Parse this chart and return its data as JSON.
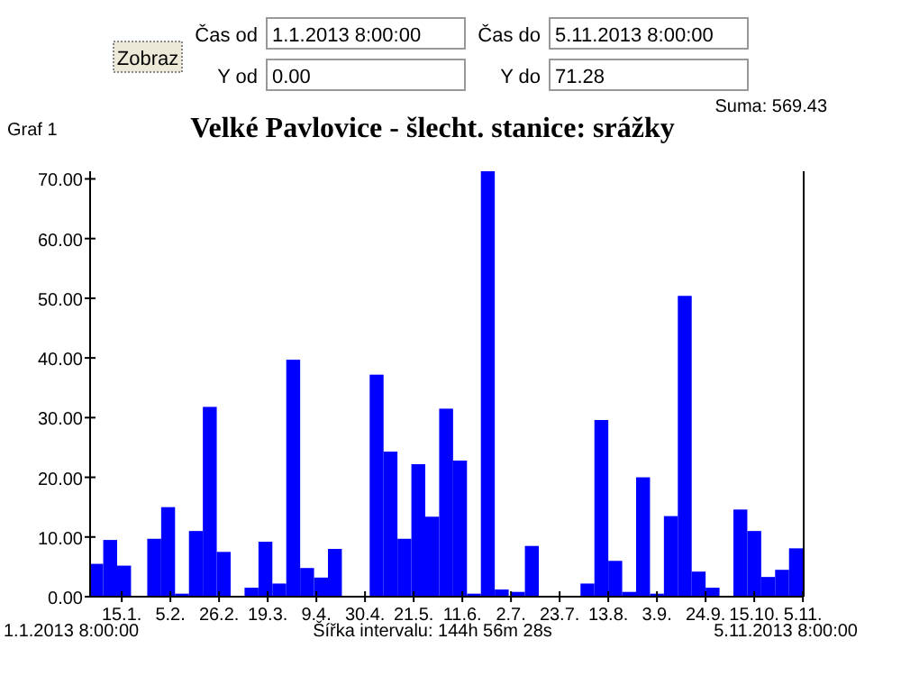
{
  "chart_data": {
    "type": "bar",
    "title": "Velké Pavlovice - šlecht. stanice: srážky",
    "annotations": [
      "Zobraz",
      "Čas od",
      "1.1.2013 8:00:00",
      "Čas do",
      "5.11.2013 8:00:00",
      "Y od",
      "0.00",
      "Y do",
      "71.28",
      "Suma: 569.43",
      "Graf 1",
      "1.1.2013 8:00:00",
      "Šířka intervalu: 144h 56m 28s",
      "5.11.2013 8:00:00"
    ],
    "x": [
      "2013-01-04",
      "2013-01-10",
      "2013-01-16",
      "2013-01-22",
      "2013-01-29",
      "2013-02-04",
      "2013-02-10",
      "2013-02-16",
      "2013-02-22",
      "2013-02-28",
      "2013-03-06",
      "2013-03-12",
      "2013-03-18",
      "2013-03-24",
      "2013-03-30",
      "2013-04-05",
      "2013-04-11",
      "2013-04-17",
      "2013-04-23",
      "2013-04-29",
      "2013-05-05",
      "2013-05-11",
      "2013-05-17",
      "2013-05-23",
      "2013-05-29",
      "2013-06-04",
      "2013-06-10",
      "2013-06-16",
      "2013-06-22",
      "2013-06-28",
      "2013-07-05",
      "2013-07-11",
      "2013-07-17",
      "2013-07-23",
      "2013-07-29",
      "2013-08-04",
      "2013-08-10",
      "2013-08-16",
      "2013-08-22",
      "2013-08-28",
      "2013-09-03",
      "2013-09-09",
      "2013-09-15",
      "2013-09-21",
      "2013-09-27",
      "2013-10-03",
      "2013-10-09",
      "2013-10-15",
      "2013-10-21",
      "2013-10-27",
      "2013-11-02"
    ],
    "values": [
      5.5,
      9.5,
      5.2,
      0,
      9.7,
      15,
      0.5,
      11,
      31.8,
      7.5,
      0,
      1.5,
      9.2,
      2.2,
      39.7,
      4.8,
      3.2,
      8,
      0,
      0,
      37.2,
      24.3,
      9.7,
      22.2,
      13.4,
      31.5,
      22.8,
      0.5,
      71.28,
      1.2,
      0.8,
      8.5,
      0,
      0,
      0,
      2.2,
      29.6,
      6,
      0.8,
      20,
      0.5,
      13.5,
      50.4,
      4.2,
      1.5,
      0,
      14.6,
      11,
      3.3,
      4.5,
      8.1
    ],
    "color": "#0000ff",
    "xlim": [
      "2013-01-01T08:00",
      "2013-11-05T08:00"
    ],
    "xticks": [
      {
        "value": "2013-01-15",
        "label": "15.1."
      },
      {
        "value": "2013-02-05",
        "label": "5.2."
      },
      {
        "value": "2013-02-26",
        "label": "26.2."
      },
      {
        "value": "2013-03-19",
        "label": "19.3."
      },
      {
        "value": "2013-04-09",
        "label": "9.4."
      },
      {
        "value": "2013-04-30",
        "label": "30.4."
      },
      {
        "value": "2013-05-21",
        "label": "21.5."
      },
      {
        "value": "2013-06-11",
        "label": "11.6."
      },
      {
        "value": "2013-07-02",
        "label": "2.7."
      },
      {
        "value": "2013-07-23",
        "label": "23.7."
      },
      {
        "value": "2013-08-13",
        "label": "13.8."
      },
      {
        "value": "2013-09-03",
        "label": "3.9."
      },
      {
        "value": "2013-09-24",
        "label": "24.9."
      },
      {
        "value": "2013-10-15",
        "label": "15.10."
      },
      {
        "value": "2013-11-05",
        "label": "5.11."
      }
    ],
    "ylim": [
      0,
      71.28
    ],
    "yticks": [
      {
        "value": 0,
        "label": "0.00"
      },
      {
        "value": 10,
        "label": "10.00"
      },
      {
        "value": 20,
        "label": "20.00"
      },
      {
        "value": 30,
        "label": "30.00"
      },
      {
        "value": 40,
        "label": "40.00"
      },
      {
        "value": 50,
        "label": "50.00"
      },
      {
        "value": 60,
        "label": "60.00"
      },
      {
        "value": 70,
        "label": "70.00"
      }
    ],
    "grid": false
  }
}
